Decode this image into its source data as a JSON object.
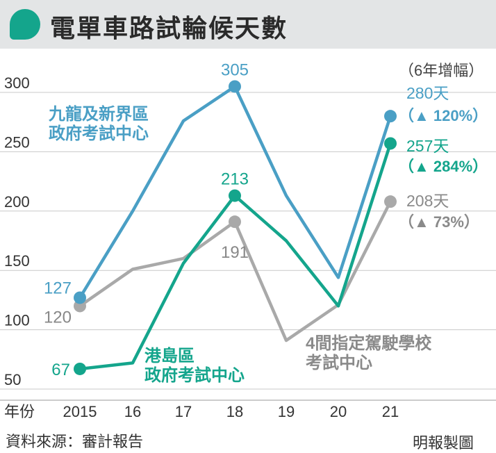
{
  "title": "電單車路試輪候天數",
  "unit_note": "（6年增幅）",
  "source": "資料來源：審計報告",
  "credit": "明報製圖",
  "colors": {
    "kowloon": "#4a9fc5",
    "island": "#14a58c",
    "schools": "#a9a9a9"
  },
  "chart_data": {
    "type": "line",
    "x_axis_label": "年份",
    "categories": [
      "2015",
      "16",
      "17",
      "18",
      "19",
      "20",
      "21"
    ],
    "y_ticks": [
      "50",
      "100",
      "150",
      "200",
      "250",
      "300"
    ],
    "ylim": [
      50,
      310
    ],
    "grid": true,
    "series": [
      {
        "key": "kowloon",
        "name_lines": [
          "九龍及新界區",
          "政府考試中心"
        ],
        "values": [
          127,
          200,
          276,
          305,
          213,
          144,
          280
        ],
        "point_labels": [
          {
            "index": 0,
            "text": "127"
          },
          {
            "index": 3,
            "text": "305"
          }
        ],
        "end_label": "280天",
        "end_change": "（▲ 120%）"
      },
      {
        "key": "island",
        "name_lines": [
          "港島區",
          "政府考試中心"
        ],
        "values": [
          67,
          72,
          156,
          213,
          175,
          120,
          257
        ],
        "point_labels": [
          {
            "index": 0,
            "text": "67"
          },
          {
            "index": 3,
            "text": "213"
          }
        ],
        "end_label": "257天",
        "end_change": "（▲ 284%）"
      },
      {
        "key": "schools",
        "name_lines": [
          "4間指定駕駛學校",
          "考試中心"
        ],
        "values": [
          120,
          151,
          160,
          191,
          91,
          121,
          208
        ],
        "point_labels": [
          {
            "index": 0,
            "text": "120"
          },
          {
            "index": 3,
            "text": "191"
          }
        ],
        "end_label": "208天",
        "end_change": "（▲ 73%）"
      }
    ]
  }
}
